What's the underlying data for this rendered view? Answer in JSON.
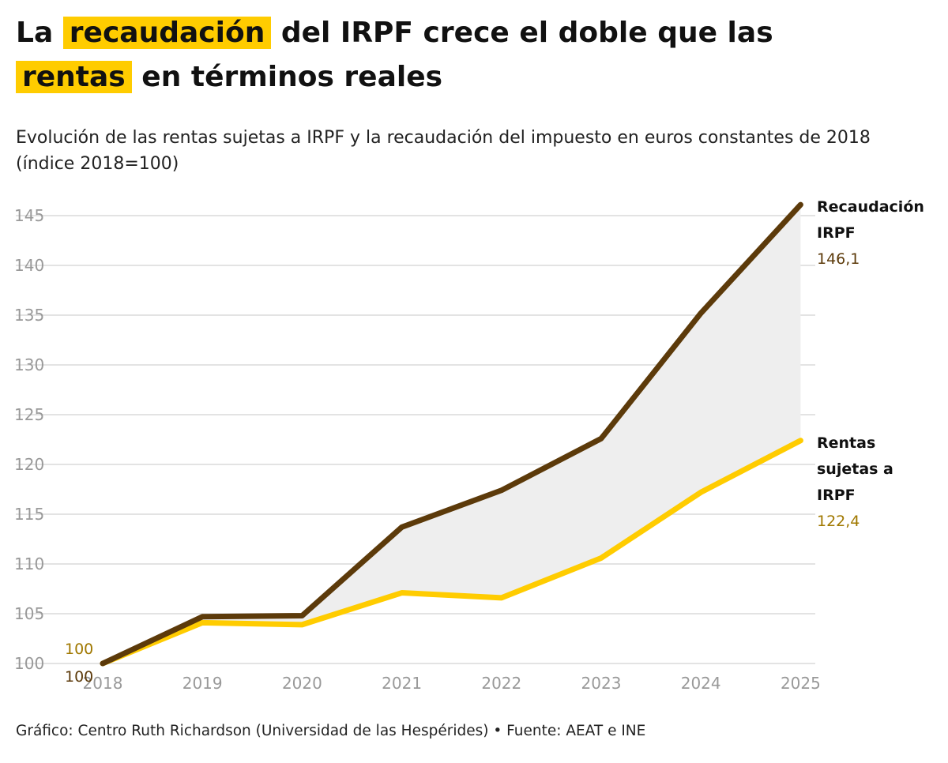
{
  "title": {
    "part1": "La",
    "highlight1": "recaudación",
    "part2": "del IRPF crece el doble que las",
    "highlight2": "rentas",
    "part3": "en términos reales"
  },
  "subtitle": "Evolución de las rentas sujetas a IRPF y la recaudación del impuesto en euros constantes de 2018 (índice 2018=100)",
  "footer": "Gráfico: Centro Ruth Richardson (Universidad de las Hespérides) • Fuente: AEAT e INE",
  "colors": {
    "recaudacion": "#5c3a0a",
    "rentas": "#ffcc00",
    "rentas_label": "#a07800",
    "fill": "#eeeeee",
    "grid": "#e3e3e3",
    "highlight": "#ffcc00"
  },
  "chart_data": {
    "type": "line",
    "categories": [
      "2018",
      "2019",
      "2020",
      "2021",
      "2022",
      "2023",
      "2024",
      "2025"
    ],
    "ylim": [
      100,
      146
    ],
    "yticks": [
      "100",
      "105",
      "110",
      "115",
      "120",
      "125",
      "130",
      "135",
      "140",
      "145"
    ],
    "fill_between_series": true,
    "grid": "horizontal",
    "series": [
      {
        "key": "recaudacion",
        "name_lines": [
          "Recaudación",
          "IRPF"
        ],
        "values": [
          100,
          104.7,
          104.8,
          113.7,
          117.4,
          122.6,
          135.2,
          146.1
        ],
        "end_label": "146,1",
        "start_label": "100"
      },
      {
        "key": "rentas",
        "name_lines": [
          "Rentas",
          "sujetas a",
          "IRPF"
        ],
        "values": [
          100,
          104.1,
          103.9,
          107.1,
          106.6,
          110.6,
          117.2,
          122.4
        ],
        "end_label": "122,4",
        "start_label": "100"
      }
    ]
  }
}
